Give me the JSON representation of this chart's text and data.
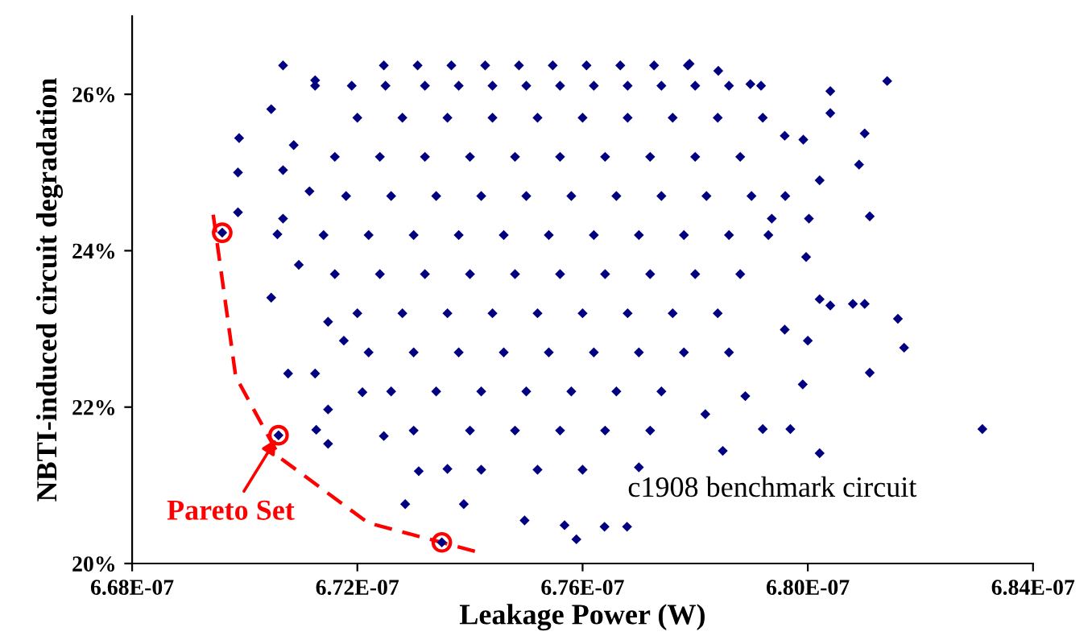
{
  "chart_data": {
    "type": "scatter",
    "xlabel": "Leakage Power (W)",
    "ylabel": "NBTI-induced circuit degradation",
    "xlim": [
      6.68e-07,
      6.84e-07
    ],
    "xticks": [
      {
        "value": 6.68e-07,
        "label": "6.68E-07"
      },
      {
        "value": 6.72e-07,
        "label": "6.72E-07"
      },
      {
        "value": 6.76e-07,
        "label": "6.76E-07"
      },
      {
        "value": 6.8e-07,
        "label": "6.80E-07"
      },
      {
        "value": 6.84e-07,
        "label": "6.84E-07"
      }
    ],
    "ylim": [
      20,
      27
    ],
    "yticks": [
      {
        "value": 20,
        "label": "20%"
      },
      {
        "value": 22,
        "label": "22%"
      },
      {
        "value": 24,
        "label": "24%"
      },
      {
        "value": 26,
        "label": "26%"
      }
    ],
    "grid": false,
    "legend": false,
    "annotations": [
      {
        "text": "Pareto Set",
        "x": 6.706e-07,
        "y": 21.64
      },
      "c1908 benchmark circuit"
    ],
    "series": [
      {
        "marker": "diamond",
        "color": "#000080",
        "x": [
          6.696e-07,
          6.706e-07,
          6.735e-07,
          6.7068e-07,
          6.7047e-07,
          6.699e-07,
          6.6988e-07,
          6.6988e-07,
          6.7068e-07,
          6.7068e-07,
          6.7058e-07,
          6.7047e-07,
          6.7077e-07,
          6.7125e-07,
          6.7148e-07,
          6.7127e-07,
          6.7148e-07,
          6.7285e-07,
          6.7389e-07,
          6.7497e-07,
          6.7589e-07,
          6.7568e-07,
          6.7125e-07,
          6.7087e-07,
          6.7115e-07,
          6.7096e-07,
          6.7148e-07,
          6.7176e-07,
          6.7209e-07,
          6.7309e-07,
          6.736e-07,
          6.7247e-07,
          6.8141e-07,
          6.804e-07,
          6.804e-07,
          6.8101e-07,
          6.8091e-07,
          6.811e-07,
          6.816e-07,
          6.8171e-07,
          6.811e-07,
          6.831e-07,
          6.8021e-07,
          6.808e-07,
          6.8101e-07,
          6.804e-07,
          6.8021e-07,
          6.7969e-07,
          6.792e-07,
          6.7849e-07,
          6.77e-07,
          6.7639e-07,
          6.7679e-07,
          6.8021e-07,
          6.8002e-07,
          6.7992e-07,
          6.7959e-07,
          6.7917e-07,
          6.7898e-07,
          6.7841e-07,
          6.779e-07,
          6.7959e-07,
          6.8e-07,
          6.7991e-07,
          6.7889e-07,
          6.7818e-07,
          6.7936e-07,
          6.7997e-07,
          6.7247e-07,
          6.7307e-07,
          6.7367e-07,
          6.7427e-07,
          6.7487e-07,
          6.7547e-07,
          6.7607e-07,
          6.7667e-07,
          6.7727e-07,
          6.7787e-07,
          6.7125e-07,
          6.719e-07,
          6.725e-07,
          6.732e-07,
          6.738e-07,
          6.744e-07,
          6.75e-07,
          6.756e-07,
          6.762e-07,
          6.768e-07,
          6.774e-07,
          6.78e-07,
          6.786e-07,
          6.72e-07,
          6.728e-07,
          6.736e-07,
          6.744e-07,
          6.752e-07,
          6.76e-07,
          6.768e-07,
          6.776e-07,
          6.784e-07,
          6.792e-07,
          6.716e-07,
          6.724e-07,
          6.732e-07,
          6.74e-07,
          6.748e-07,
          6.756e-07,
          6.764e-07,
          6.772e-07,
          6.78e-07,
          6.788e-07,
          6.718e-07,
          6.726e-07,
          6.734e-07,
          6.742e-07,
          6.75e-07,
          6.758e-07,
          6.766e-07,
          6.774e-07,
          6.782e-07,
          6.79e-07,
          6.796e-07,
          6.714e-07,
          6.722e-07,
          6.73e-07,
          6.738e-07,
          6.746e-07,
          6.754e-07,
          6.762e-07,
          6.77e-07,
          6.778e-07,
          6.786e-07,
          6.793e-07,
          6.716e-07,
          6.724e-07,
          6.732e-07,
          6.74e-07,
          6.748e-07,
          6.756e-07,
          6.764e-07,
          6.772e-07,
          6.78e-07,
          6.788e-07,
          6.72e-07,
          6.728e-07,
          6.736e-07,
          6.744e-07,
          6.752e-07,
          6.76e-07,
          6.768e-07,
          6.776e-07,
          6.784e-07,
          6.722e-07,
          6.73e-07,
          6.738e-07,
          6.746e-07,
          6.754e-07,
          6.762e-07,
          6.77e-07,
          6.778e-07,
          6.786e-07,
          6.726e-07,
          6.734e-07,
          6.742e-07,
          6.75e-07,
          6.758e-07,
          6.766e-07,
          6.774e-07,
          6.73e-07,
          6.74e-07,
          6.748e-07,
          6.756e-07,
          6.764e-07,
          6.772e-07,
          6.742e-07,
          6.752e-07,
          6.76e-07
        ],
        "values": [
          24.23,
          21.64,
          20.27,
          26.37,
          25.81,
          25.44,
          25.0,
          24.49,
          25.03,
          24.41,
          24.21,
          23.4,
          22.43,
          22.43,
          21.97,
          21.71,
          21.53,
          20.76,
          20.76,
          20.55,
          20.31,
          20.49,
          26.18,
          25.35,
          24.76,
          23.82,
          23.09,
          22.85,
          22.19,
          21.18,
          21.21,
          21.63,
          26.17,
          26.04,
          25.76,
          25.5,
          25.1,
          24.44,
          23.13,
          22.76,
          22.44,
          21.72,
          21.41,
          23.32,
          23.32,
          23.3,
          23.38,
          21.72,
          21.72,
          21.44,
          21.23,
          20.47,
          20.47,
          24.9,
          24.41,
          25.42,
          25.47,
          26.11,
          26.13,
          26.3,
          26.39,
          22.99,
          22.85,
          22.29,
          22.14,
          21.91,
          24.41,
          23.92,
          26.37,
          26.37,
          26.37,
          26.37,
          26.37,
          26.37,
          26.37,
          26.37,
          26.37,
          26.37,
          26.11,
          26.11,
          26.11,
          26.11,
          26.11,
          26.11,
          26.11,
          26.11,
          26.11,
          26.11,
          26.11,
          26.11,
          26.11,
          25.7,
          25.7,
          25.7,
          25.7,
          25.7,
          25.7,
          25.7,
          25.7,
          25.7,
          25.7,
          25.2,
          25.2,
          25.2,
          25.2,
          25.2,
          25.2,
          25.2,
          25.2,
          25.2,
          25.2,
          24.7,
          24.7,
          24.7,
          24.7,
          24.7,
          24.7,
          24.7,
          24.7,
          24.7,
          24.7,
          24.7,
          24.2,
          24.2,
          24.2,
          24.2,
          24.2,
          24.2,
          24.2,
          24.2,
          24.2,
          24.2,
          24.2,
          23.7,
          23.7,
          23.7,
          23.7,
          23.7,
          23.7,
          23.7,
          23.7,
          23.7,
          23.7,
          23.2,
          23.2,
          23.2,
          23.2,
          23.2,
          23.2,
          23.2,
          23.2,
          23.2,
          22.7,
          22.7,
          22.7,
          22.7,
          22.7,
          22.7,
          22.7,
          22.7,
          22.7,
          22.2,
          22.2,
          22.2,
          22.2,
          22.2,
          22.2,
          22.2,
          21.7,
          21.7,
          21.7,
          21.7,
          21.7,
          21.7,
          21.2,
          21.2,
          21.2
        ]
      },
      {
        "type": "scatter",
        "marker": "circle",
        "color": "#ff0000",
        "x": [
          6.696e-07,
          6.706e-07,
          6.735e-07
        ],
        "values": [
          24.23,
          21.64,
          20.27
        ]
      },
      {
        "type": "line",
        "line_style": "dashed",
        "marker": "none",
        "color": "#ff0000",
        "x": [
          6.6944e-07,
          6.6984e-07,
          6.7063e-07,
          6.7219e-07,
          6.7412e-07
        ],
        "values": [
          24.46,
          22.39,
          21.35,
          20.52,
          20.15
        ]
      }
    ]
  }
}
